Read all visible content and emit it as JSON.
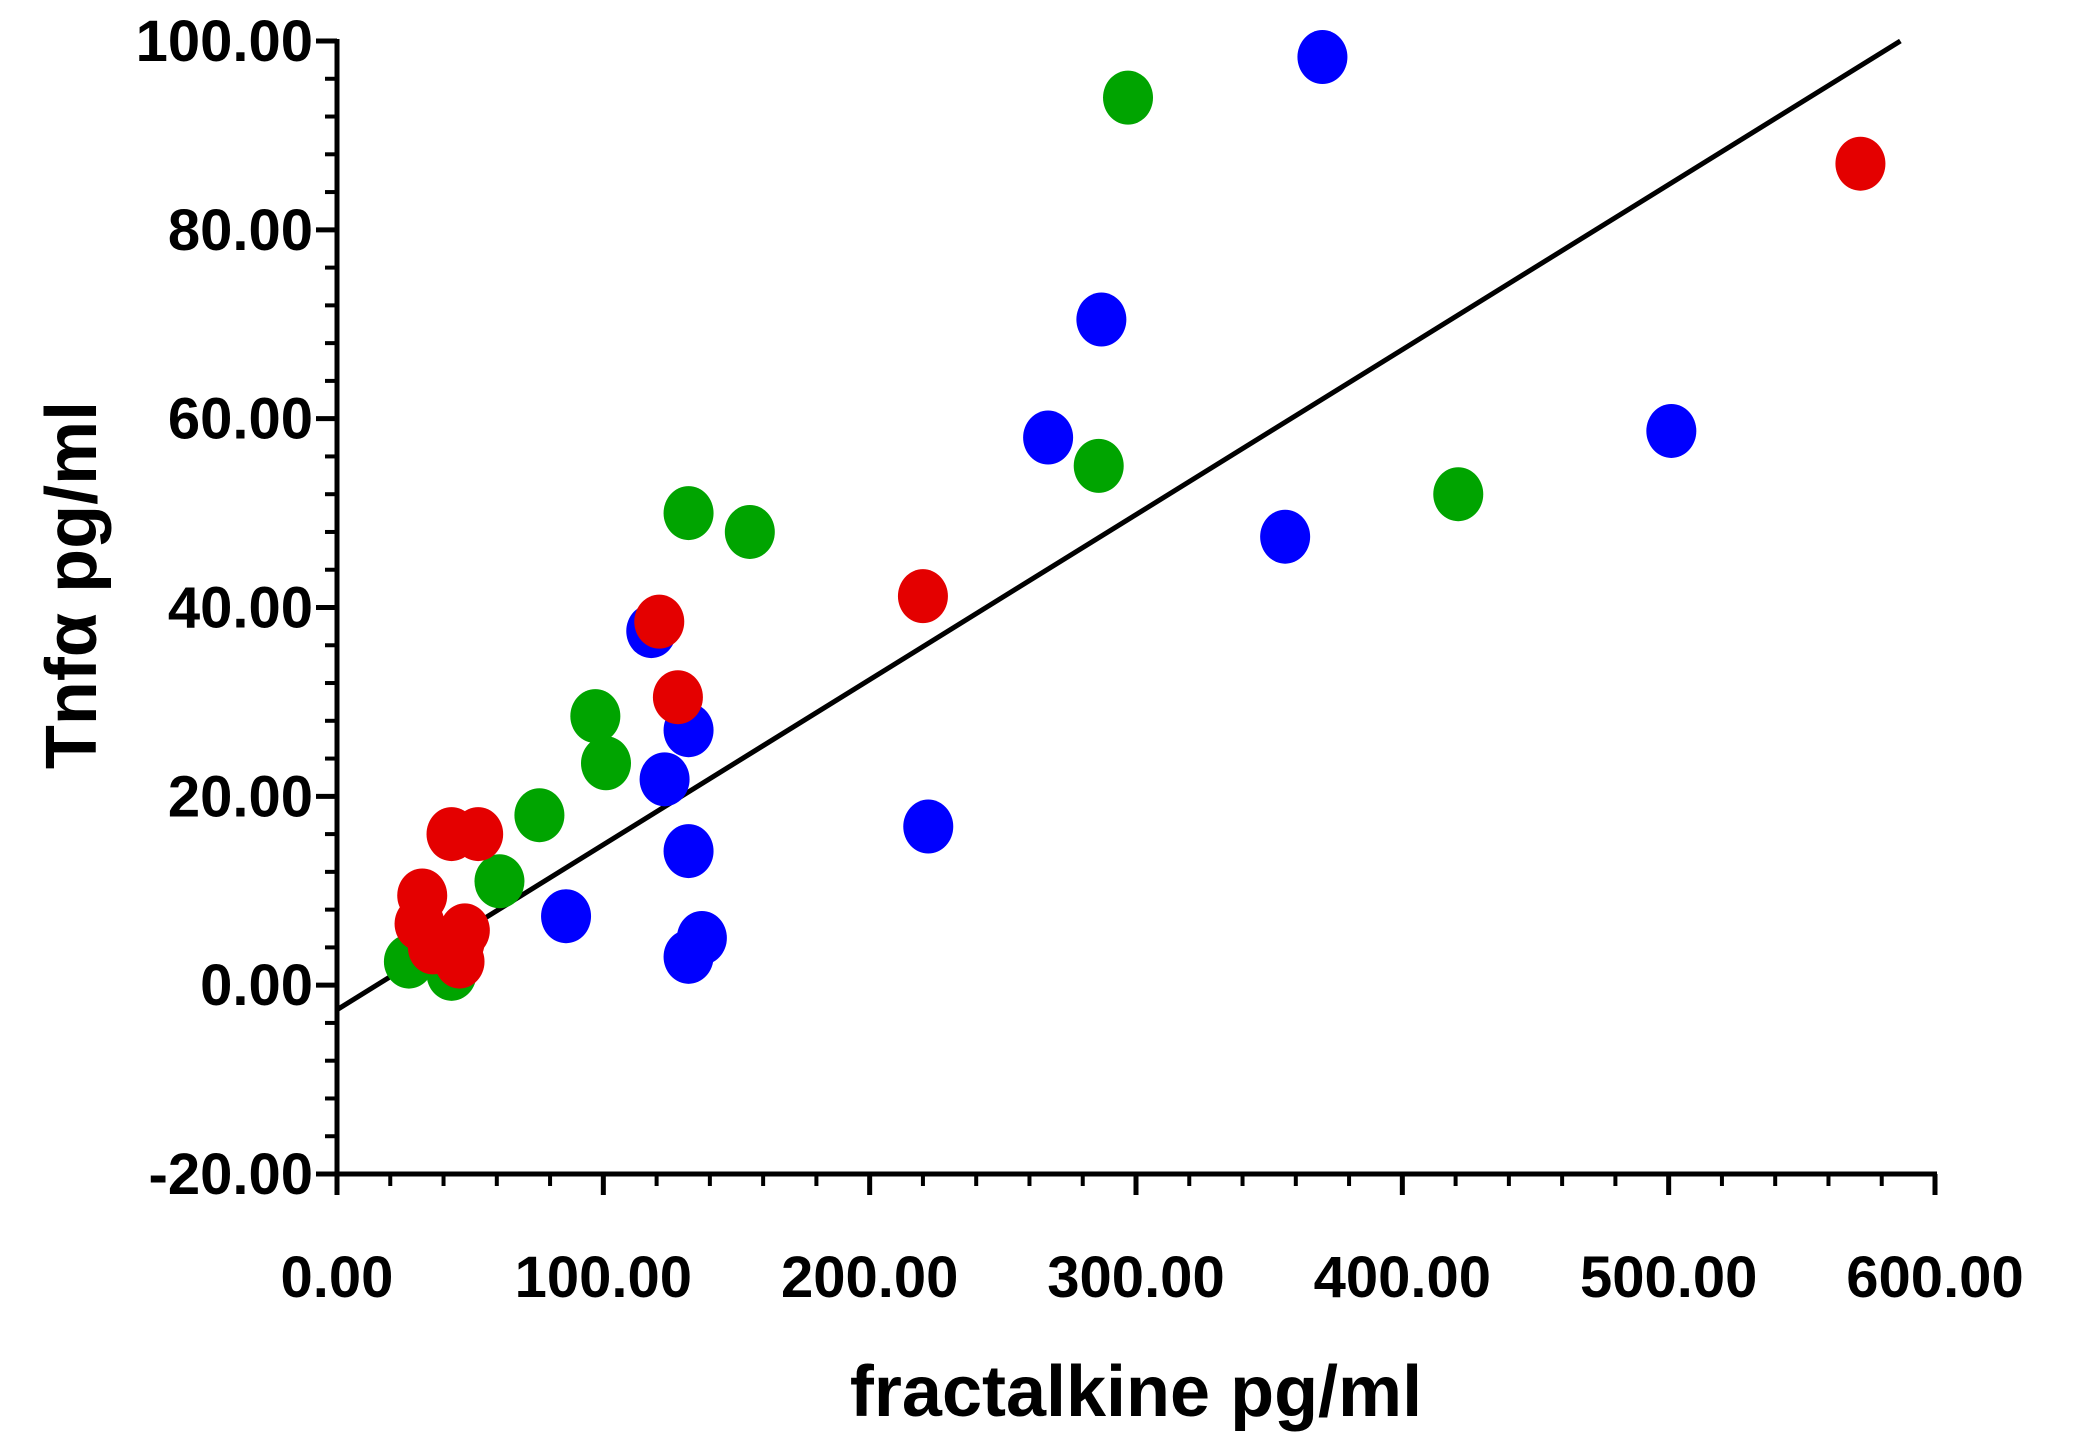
{
  "chart_data": {
    "type": "scatter",
    "title": "",
    "xlabel": "fractalkine pg/ml",
    "ylabel": "Tnfα pg/ml",
    "xlim": [
      0,
      600
    ],
    "ylim": [
      -20,
      100
    ],
    "x_ticks": [
      0,
      100,
      200,
      300,
      400,
      500,
      600
    ],
    "x_tick_labels": [
      "0.00",
      "100.00",
      "200.00",
      "300.00",
      "400.00",
      "500.00",
      "600.00"
    ],
    "y_ticks": [
      -20,
      0,
      20,
      40,
      60,
      80,
      100
    ],
    "y_tick_labels": [
      "-20.00",
      "0.00",
      "20.00",
      "40.00",
      "60.00",
      "80.00",
      "100.00"
    ],
    "x_minor_step": 20,
    "y_minor_step": 4,
    "grid": false,
    "legend": "none",
    "regression_line": {
      "x": [
        0,
        587
      ],
      "y": [
        -2.6,
        100
      ]
    },
    "series": [
      {
        "name": "green",
        "color": "#00a400",
        "points": [
          [
            27,
            2.5
          ],
          [
            43,
            1.2
          ],
          [
            61,
            11
          ],
          [
            76,
            18
          ],
          [
            97,
            28.5
          ],
          [
            101,
            23.5
          ],
          [
            132,
            50
          ],
          [
            155,
            48
          ],
          [
            286,
            55
          ],
          [
            297,
            94
          ],
          [
            421,
            52
          ]
        ]
      },
      {
        "name": "blue",
        "color": "#0000ff",
        "points": [
          [
            86,
            7.3
          ],
          [
            118,
            37.5
          ],
          [
            123,
            21.8
          ],
          [
            132,
            27
          ],
          [
            132,
            14.2
          ],
          [
            132,
            3
          ],
          [
            137,
            5
          ],
          [
            222,
            16.8
          ],
          [
            267,
            58
          ],
          [
            287,
            70.5
          ],
          [
            356,
            47.5
          ],
          [
            370,
            98.3
          ],
          [
            501,
            58.7
          ]
        ]
      },
      {
        "name": "red",
        "color": "#e40000",
        "points": [
          [
            32,
            9.5
          ],
          [
            31,
            6.5
          ],
          [
            36,
            4
          ],
          [
            43,
            16
          ],
          [
            46,
            4.5
          ],
          [
            46,
            2.5
          ],
          [
            48,
            5.8
          ],
          [
            53,
            16
          ],
          [
            121,
            38.5
          ],
          [
            128,
            30.5
          ],
          [
            220,
            41.2
          ],
          [
            572,
            87
          ]
        ]
      }
    ]
  }
}
